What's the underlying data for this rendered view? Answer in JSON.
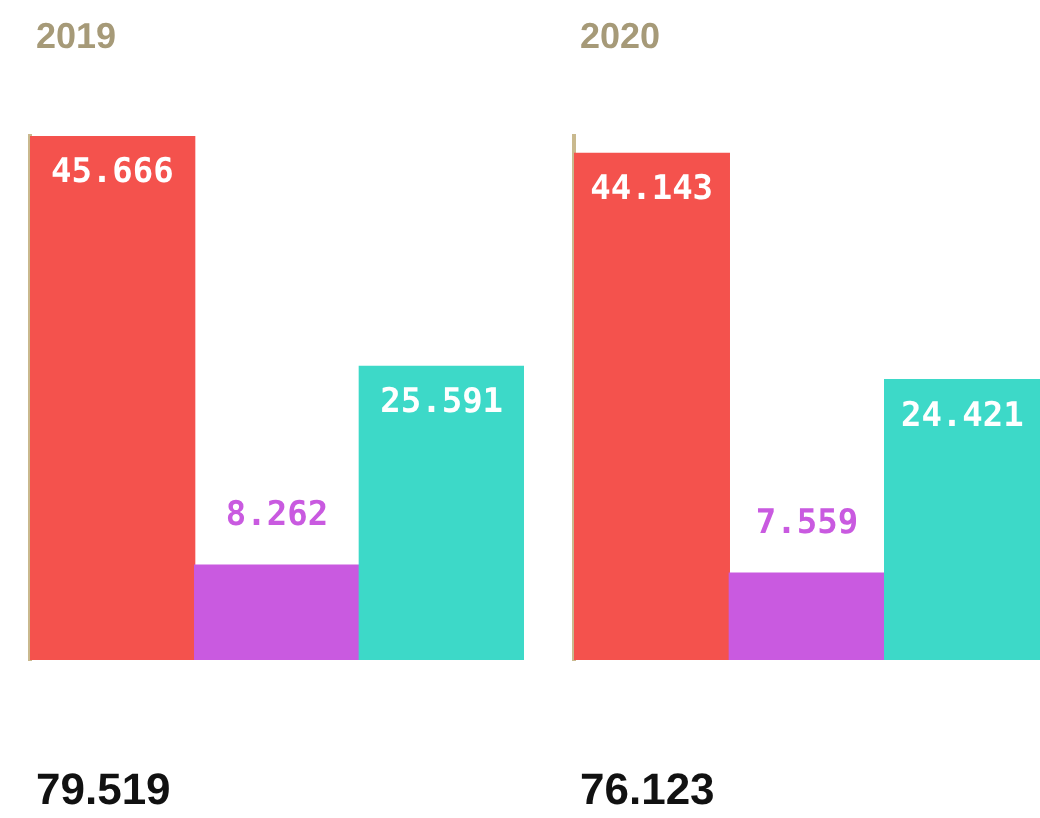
{
  "chart_data": [
    {
      "type": "bar",
      "title": "2019",
      "categories": [
        null,
        null,
        null
      ],
      "values": [
        45.666,
        8.262,
        25.591
      ],
      "colors": [
        "#f4524d",
        "#c95ae0",
        "#3dd9c8"
      ],
      "data_labels": true,
      "annotations": [
        "79.519"
      ]
    },
    {
      "type": "bar",
      "title": "2020",
      "categories": [
        null,
        null,
        null
      ],
      "values": [
        44.143,
        7.559,
        24.421
      ],
      "colors": [
        "#f4524d",
        "#c95ae0",
        "#3dd9c8"
      ],
      "data_labels": true,
      "annotations": [
        "76.123"
      ]
    }
  ]
}
